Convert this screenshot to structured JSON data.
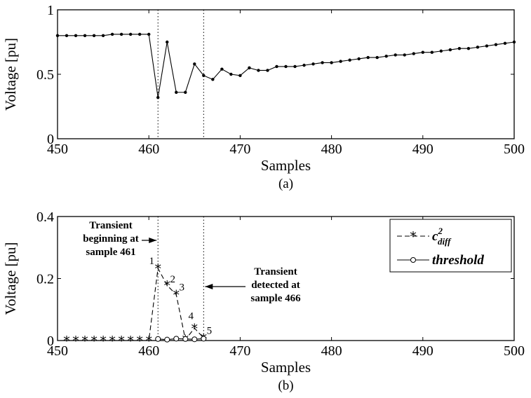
{
  "chart_data": [
    {
      "type": "line",
      "caption": "(a)",
      "xlabel": "Samples",
      "ylabel": "Voltage [pu]",
      "xlim": [
        450,
        500
      ],
      "ylim": [
        0,
        1
      ],
      "xticks": [
        "450",
        "460",
        "470",
        "480",
        "490",
        "500"
      ],
      "yticks": [
        "0",
        "0.5",
        "1"
      ],
      "vlines": [
        461,
        466
      ],
      "series": [
        {
          "marker": "dot",
          "x": [
            450,
            451,
            452,
            453,
            454,
            455,
            456,
            457,
            458,
            459,
            460,
            461,
            462,
            463,
            464,
            465,
            466,
            467,
            468,
            469,
            470,
            471,
            472,
            473,
            474,
            475,
            476,
            477,
            478,
            479,
            480,
            481,
            482,
            483,
            484,
            485,
            486,
            487,
            488,
            489,
            490,
            491,
            492,
            493,
            494,
            495,
            496,
            497,
            498,
            499,
            500
          ],
          "y": [
            0.8,
            0.8,
            0.8,
            0.8,
            0.8,
            0.8,
            0.81,
            0.81,
            0.81,
            0.81,
            0.81,
            0.32,
            0.75,
            0.36,
            0.36,
            0.58,
            0.49,
            0.46,
            0.54,
            0.5,
            0.49,
            0.55,
            0.53,
            0.53,
            0.56,
            0.56,
            0.56,
            0.57,
            0.58,
            0.59,
            0.59,
            0.6,
            0.61,
            0.62,
            0.63,
            0.63,
            0.64,
            0.65,
            0.65,
            0.66,
            0.67,
            0.67,
            0.68,
            0.69,
            0.7,
            0.7,
            0.71,
            0.72,
            0.73,
            0.74,
            0.75
          ]
        }
      ]
    },
    {
      "type": "line",
      "caption": "(b)",
      "xlabel": "Samples",
      "ylabel": "Voltage [pu]",
      "xlim": [
        450,
        500
      ],
      "ylim": [
        0,
        0.4
      ],
      "xticks": [
        "450",
        "460",
        "470",
        "480",
        "490",
        "500"
      ],
      "yticks": [
        "0",
        "0.2",
        "0.4"
      ],
      "vlines": [
        461,
        466
      ],
      "series": [
        {
          "name": "c²diff",
          "legend_main": "c",
          "legend_sup": "2",
          "legend_sub": "diff",
          "style": "dashed",
          "marker": "star",
          "x": [
            451,
            452,
            453,
            454,
            455,
            456,
            457,
            458,
            459,
            460,
            461,
            462,
            463,
            464,
            465,
            466
          ],
          "y": [
            0,
            0,
            0,
            0,
            0,
            0,
            0,
            0,
            0,
            0,
            0.233,
            0.178,
            0.148,
            0.003,
            0.04,
            0.008
          ]
        },
        {
          "name": "threshold",
          "style": "solid",
          "marker": "circle",
          "x": [
            461,
            462,
            463,
            464,
            465,
            466
          ],
          "y": [
            0.005,
            0.003,
            0.006,
            0.005,
            0.004,
            0.006
          ]
        }
      ],
      "point_labels": [
        {
          "text": "1",
          "x": 461,
          "y": 0.233
        },
        {
          "text": "2",
          "x": 462,
          "y": 0.178
        },
        {
          "text": "3",
          "x": 463,
          "y": 0.148
        },
        {
          "text": "4",
          "x": 465,
          "y": 0.04
        },
        {
          "text": "5",
          "x": 466,
          "y": 0.008
        }
      ],
      "annotations": [
        {
          "lines": [
            "Transient",
            "beginning at",
            "sample 461"
          ],
          "arrow_to_x": 461
        },
        {
          "lines": [
            "Transient",
            "detected at",
            "sample 466"
          ],
          "arrow_to_x": 466
        }
      ],
      "legend_position": "top-right"
    }
  ]
}
